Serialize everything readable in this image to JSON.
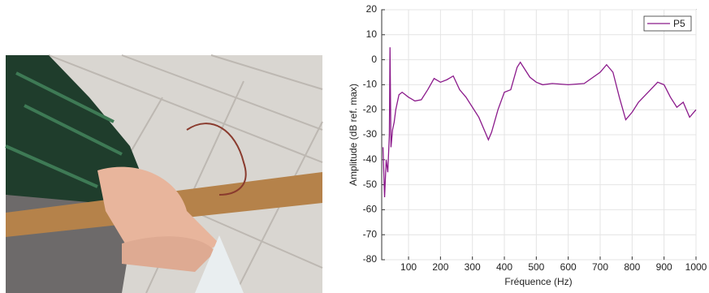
{
  "chart_data": {
    "type": "line",
    "xlabel": "Fréquence (Hz)",
    "ylabel": "Amplitude (dB ref. max)",
    "x": [
      20,
      25,
      30,
      35,
      40,
      42,
      45,
      50,
      55,
      60,
      70,
      80,
      100,
      120,
      140,
      160,
      180,
      200,
      220,
      240,
      260,
      280,
      300,
      320,
      340,
      350,
      360,
      380,
      400,
      420,
      440,
      450,
      460,
      480,
      500,
      520,
      550,
      600,
      650,
      700,
      720,
      740,
      760,
      780,
      800,
      820,
      850,
      880,
      900,
      920,
      940,
      950,
      960,
      970,
      980,
      1000
    ],
    "series": [
      {
        "name": "P5",
        "color": "#8b1a8b",
        "values": [
          -35,
          -55,
          -40,
          -45,
          -30,
          5,
          -35,
          -28,
          -25,
          -20,
          -14,
          -13,
          -15,
          -16.5,
          -16,
          -12,
          -7.5,
          -9,
          -8,
          -6.5,
          -12,
          -15,
          -19,
          -23,
          -29,
          -32,
          -29,
          -20,
          -13,
          -12,
          -3,
          -1,
          -3,
          -7,
          -9,
          -10,
          -9.5,
          -10,
          -9.5,
          -5,
          -2,
          -5,
          -15,
          -24,
          -21,
          -17,
          -13,
          -9,
          -10,
          -15,
          -19,
          -18,
          -17,
          -20,
          -23,
          -20
        ]
      }
    ],
    "xlim": [
      16,
      1000
    ],
    "xticks": [
      100,
      200,
      300,
      400,
      500,
      600,
      700,
      800,
      900,
      1000
    ],
    "ylim": [
      -80,
      20
    ],
    "yticks": [
      -80,
      -70,
      -60,
      -50,
      -40,
      -30,
      -20,
      -10,
      0,
      10,
      20
    ],
    "grid": true,
    "legend": "upper right"
  }
}
